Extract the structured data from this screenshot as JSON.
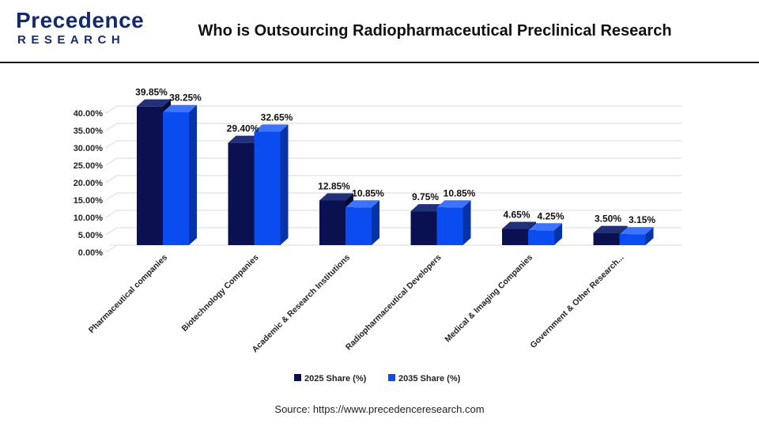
{
  "header": {
    "logo_word1": "Precedence",
    "logo_word2": "RESEARCH",
    "title": "Who is Outsourcing Radiopharmaceutical Preclinical Research"
  },
  "colors": {
    "series_2025": "#0b1150",
    "series_2035": "#0a4cf0",
    "grid": "#d9d9d9",
    "brand": "#152a6b"
  },
  "chart_data": {
    "type": "bar",
    "categories": [
      "Pharmaceutical companies",
      "Biotechnology Companies",
      "Academic & Research Institutions",
      "Radiopharmaceutical Developers",
      "Medical & Imaging Companies",
      "Government & Other Research..."
    ],
    "series": [
      {
        "name": "2025 Share (%)",
        "values": [
          39.85,
          29.4,
          12.85,
          9.75,
          4.65,
          3.5
        ],
        "labels": [
          "39.85%",
          "29.40%",
          "12.85%",
          "9.75%",
          "4.65%",
          "3.50%"
        ]
      },
      {
        "name": "2035 Share (%)",
        "values": [
          38.25,
          32.65,
          10.85,
          10.85,
          4.25,
          3.15
        ],
        "labels": [
          "38.25%",
          "32.65%",
          "10.85%",
          "10.85%",
          "4.25%",
          "3.15%"
        ]
      }
    ],
    "yticks": [
      "0.00%",
      "5.00%",
      "10.00%",
      "15.00%",
      "20.00%",
      "25.00%",
      "30.00%",
      "35.00%",
      "40.00%"
    ],
    "ylim": [
      0,
      40
    ],
    "grid": true,
    "legend_position": "bottom",
    "three_d": true
  },
  "footer": {
    "source": "Source: https://www.precedenceresearch.com"
  }
}
